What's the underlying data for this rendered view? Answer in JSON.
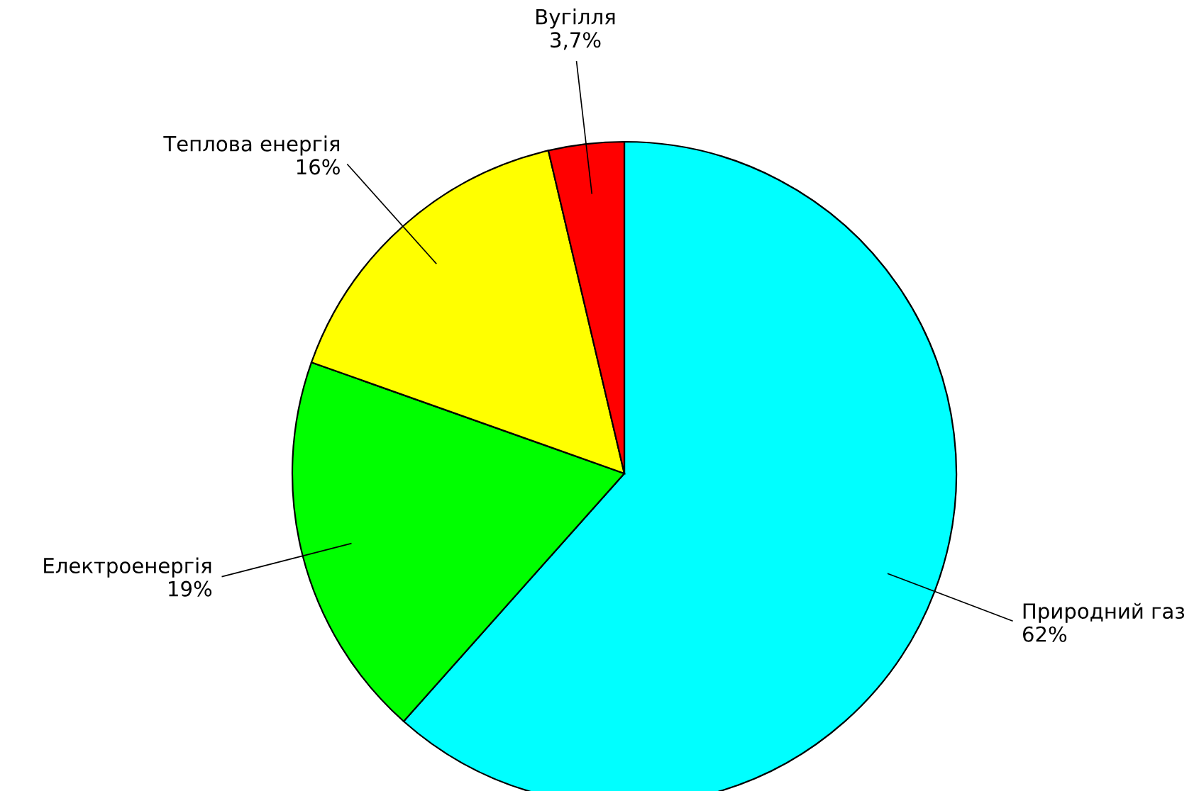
{
  "chart_data": {
    "type": "pie",
    "categories": [
      "Природний газ",
      "Електроенергія",
      "Теплова енергія",
      "Вугілля"
    ],
    "values": [
      62,
      19,
      16,
      3.7
    ],
    "value_labels": [
      "62%",
      "19%",
      "16%",
      "3,7%"
    ],
    "colors": [
      "#00ffff",
      "#00ff00",
      "#ffff00",
      "#ff0000"
    ],
    "legend": false
  }
}
